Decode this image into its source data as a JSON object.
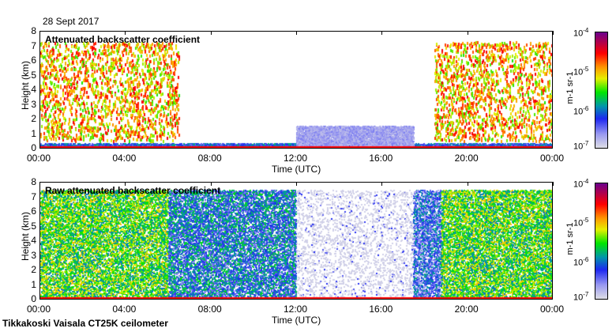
{
  "date_label": "28 Sept 2017",
  "footer": "Tikkakoski Vaisala CT25K ceilometer",
  "chart_data": [
    {
      "type": "heatmap",
      "title": "Attenuated backscatter coefficient",
      "xlabel": "Time (UTC)",
      "ylabel": "Height (km)",
      "xlim": [
        0,
        24
      ],
      "ylim": [
        0,
        8
      ],
      "x_ticks": [
        "00:00",
        "04:00",
        "08:00",
        "12:00",
        "16:00",
        "20:00",
        "00:00"
      ],
      "y_ticks": [
        "0",
        "1",
        "2",
        "3",
        "4",
        "5",
        "6",
        "7",
        "8"
      ],
      "colorbar": {
        "label": "m-1 sr-1",
        "scale": "log",
        "range": [
          1e-07,
          0.0001
        ],
        "ticks": [
          "10-7",
          "10-6",
          "10-5",
          "10-4"
        ]
      },
      "features": [
        {
          "time_range": [
            0,
            6.5
          ],
          "height_range": [
            0.5,
            7.3
          ],
          "kind": "sparse noise",
          "level": 1e-05
        },
        {
          "time_range": [
            18.5,
            24
          ],
          "height_range": [
            0.5,
            7.3
          ],
          "kind": "sparse noise",
          "level": 1e-05
        },
        {
          "time_range": [
            0,
            24
          ],
          "height_range": [
            0,
            0.3
          ],
          "kind": "surface layer",
          "level": 3e-07
        },
        {
          "time_range": [
            12,
            17.5
          ],
          "height_range": [
            0,
            1.5
          ],
          "kind": "boundary layer",
          "level": 1.5e-07
        }
      ]
    },
    {
      "type": "heatmap",
      "title": "Raw attenuated backscatter coefficient",
      "xlabel": "Time (UTC)",
      "ylabel": "Height (km)",
      "xlim": [
        0,
        24
      ],
      "ylim": [
        0,
        8
      ],
      "x_ticks": [
        "00:00",
        "04:00",
        "08:00",
        "12:00",
        "16:00",
        "20:00",
        "00:00"
      ],
      "y_ticks": [
        "0",
        "1",
        "2",
        "3",
        "4",
        "5",
        "6",
        "7",
        "8"
      ],
      "colorbar": {
        "label": "m-1 sr-1",
        "scale": "log",
        "range": [
          1e-07,
          0.0001
        ],
        "ticks": [
          "10-7",
          "10-6",
          "10-5",
          "10-4"
        ]
      },
      "features": [
        {
          "time_range": [
            0,
            6
          ],
          "height_range": [
            0,
            7.5
          ],
          "kind": "dense noise",
          "level": 3e-06
        },
        {
          "time_range": [
            6,
            12
          ],
          "height_range": [
            0,
            7.5
          ],
          "kind": "dense noise",
          "level": 8e-07
        },
        {
          "time_range": [
            12,
            17.5
          ],
          "height_range": [
            0,
            7.5
          ],
          "kind": "low noise",
          "level": 1e-07
        },
        {
          "time_range": [
            17.5,
            18.8
          ],
          "height_range": [
            0,
            7.5
          ],
          "kind": "dense noise",
          "level": 5e-07
        },
        {
          "time_range": [
            18.8,
            24
          ],
          "height_range": [
            0,
            7.5
          ],
          "kind": "dense noise",
          "level": 3e-06
        }
      ]
    }
  ]
}
